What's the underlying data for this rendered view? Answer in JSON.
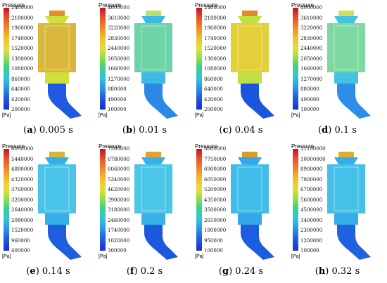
{
  "panels": [
    {
      "title": "Pressure",
      "unit": "[Pa]",
      "ticks": [
        "2400000",
        "2180000",
        "1960000",
        "1740000",
        "1520000",
        "1300000",
        "1080000",
        "860000",
        "640000",
        "420000",
        "200000"
      ],
      "letter": "a",
      "caption": " 0.005 s",
      "body_color": "#d9b83c",
      "top_color": "#e2912a",
      "pipe_color": "#1f5ae0",
      "neck_color": "#cfe03a"
    },
    {
      "title": "Pressure",
      "unit": "[Pa]",
      "ticks": [
        "4000000",
        "3610000",
        "3220000",
        "2830000",
        "2440000",
        "2050000",
        "1660000",
        "1270000",
        "880000",
        "490000",
        "100000"
      ],
      "letter": "b",
      "caption": " 0.01 s",
      "body_color": "#6fd3a8",
      "top_color": "#b9e06a",
      "pipe_color": "#2b89e6",
      "neck_color": "#3fb9e6"
    },
    {
      "title": "Pressure",
      "unit": "[Pa]",
      "ticks": [
        "2400000",
        "2180000",
        "1960000",
        "1740000",
        "1520000",
        "1300000",
        "1080000",
        "860000",
        "640000",
        "420000",
        "200000"
      ],
      "letter": "c",
      "caption": " 0.04 s",
      "body_color": "#e2cf3a",
      "top_color": "#e08a2a",
      "pipe_color": "#1a55dc",
      "neck_color": "#bde042"
    },
    {
      "title": "Pressure",
      "unit": "[Pa]",
      "ticks": [
        "4000000",
        "3610000",
        "3220000",
        "2830000",
        "2440000",
        "2050000",
        "1660000",
        "1270000",
        "880000",
        "490000",
        "100000"
      ],
      "letter": "d",
      "caption": " 0.1 s",
      "body_color": "#7ed9a0",
      "top_color": "#cfe05a",
      "pipe_color": "#2c8ee6",
      "neck_color": "#45c2e2"
    },
    {
      "title": "Pressure",
      "unit": "[Pa]",
      "ticks": [
        "6000000",
        "5440000",
        "4880000",
        "4320000",
        "3760000",
        "3200000",
        "2640000",
        "2080000",
        "1520000",
        "960000",
        "400000"
      ],
      "letter": "e",
      "caption": " 0.14 s",
      "body_color": "#49c4e8",
      "top_color": "#d6b33a",
      "pipe_color": "#1e5fe0",
      "neck_color": "#37aee8"
    },
    {
      "title": "Pressure",
      "unit": "[Pa]",
      "ticks": [
        "7500000",
        "6780000",
        "6060000",
        "5340000",
        "4620000",
        "3900000",
        "3180000",
        "2460000",
        "1740000",
        "1020000",
        "300000"
      ],
      "letter": "f",
      "caption": " 0.2 s",
      "body_color": "#4cc6e6",
      "top_color": "#e2a032",
      "pipe_color": "#1b5ade",
      "neck_color": "#38b0e8"
    },
    {
      "title": "Pressure",
      "unit": "[Pa]",
      "ticks": [
        "8600000",
        "7750000",
        "6900000",
        "6050000",
        "5200000",
        "4350000",
        "3500000",
        "2650000",
        "1800000",
        "950000",
        "100000"
      ],
      "letter": "g",
      "caption": " 0.24 s",
      "body_color": "#3fbde8",
      "top_color": "#d99a2e",
      "pipe_color": "#1d5de0",
      "neck_color": "#34a8e8"
    },
    {
      "title": "Pressure",
      "unit": "[Pa]",
      "ticks": [
        "11100000",
        "10000000",
        "8900000",
        "7800000",
        "6700000",
        "5600000",
        "4500000",
        "3400000",
        "2300000",
        "1200000",
        "100000"
      ],
      "letter": "h",
      "caption": " 0.32 s",
      "body_color": "#45c0e8",
      "top_color": "#d8b030",
      "pipe_color": "#1f62e0",
      "neck_color": "#38ace8"
    }
  ]
}
